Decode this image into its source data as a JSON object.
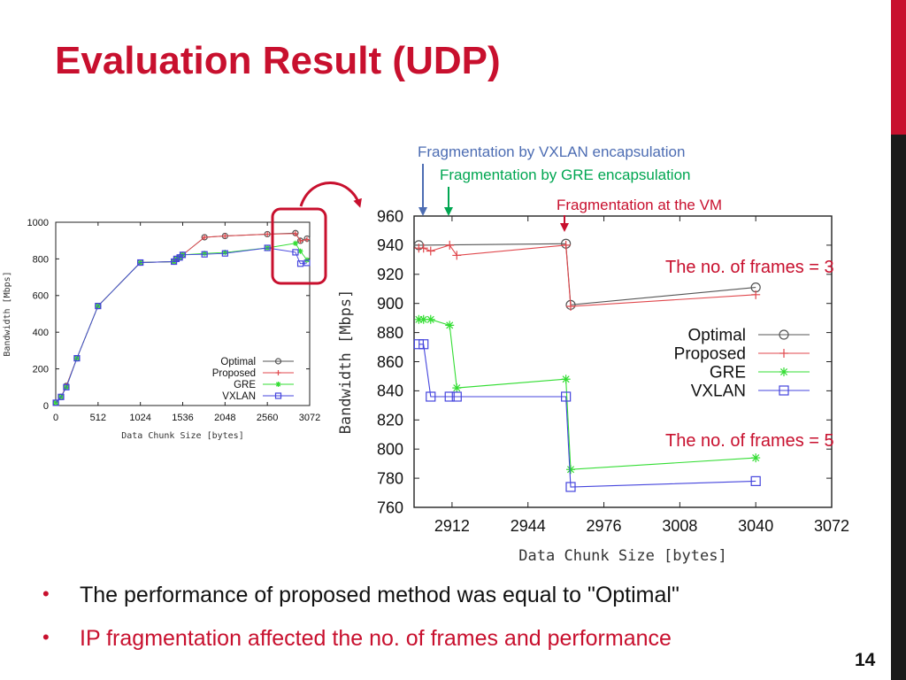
{
  "slide": {
    "title": "Evaluation Result (UDP)",
    "page_number": "14",
    "colors": {
      "accent": "#c8102e",
      "sidebar_dark": "#1a1a1a",
      "text": "#111111"
    }
  },
  "annotations": {
    "vxlan_frag": "Fragmentation by VXLAN encapsulation",
    "gre_frag": "Fragmentation by GRE encapsulation",
    "vm_frag": "Fragmentation at the VM",
    "frames3": "The no. of frames = 3",
    "frames5": "The no. of frames = 5",
    "colors": {
      "vxlan": "#4d6db3",
      "gre": "#00a651",
      "vm": "#c8102e"
    }
  },
  "bullets": [
    {
      "text": "The performance of proposed method was equal to \"Optimal\"",
      "color": "#111111"
    },
    {
      "text": "IP fragmentation affected the no. of frames and performance",
      "color": "#c8102e"
    }
  ],
  "chart_data": [
    {
      "type": "line",
      "xlabel": "Data Chunk Size [bytes]",
      "ylabel": "Bandwidth [Mbps]",
      "xlim": [
        0,
        3072
      ],
      "ylim": [
        0,
        1000
      ],
      "xticks": [
        0,
        512,
        1024,
        1536,
        2048,
        2560,
        3072
      ],
      "yticks": [
        0,
        200,
        400,
        600,
        800,
        1000
      ],
      "legend": "bottom-right",
      "series": [
        {
          "name": "Optimal",
          "marker": "circle",
          "color": "#555555",
          "x": [
            1,
            64,
            128,
            256,
            512,
            1024,
            1430,
            1460,
            1500,
            1536,
            1800,
            2048,
            2560,
            2900,
            2960,
            3040
          ],
          "y": [
            15,
            47,
            107,
            258,
            543,
            780,
            785,
            800,
            808,
            822,
            918,
            925,
            935,
            941,
            899,
            911
          ]
        },
        {
          "name": "Proposed",
          "marker": "plus",
          "color": "#e0474c",
          "x": [
            1,
            64,
            128,
            256,
            512,
            1024,
            1430,
            1460,
            1500,
            1536,
            1800,
            2048,
            2560,
            2900,
            2960,
            3040
          ],
          "y": [
            15,
            47,
            107,
            258,
            543,
            780,
            785,
            800,
            808,
            822,
            918,
            925,
            935,
            938,
            898,
            906
          ]
        },
        {
          "name": "GRE",
          "marker": "star",
          "color": "#33dd33",
          "x": [
            1,
            64,
            128,
            256,
            512,
            1024,
            1430,
            1460,
            1500,
            1536,
            1800,
            2048,
            2560,
            2900,
            2960,
            3040
          ],
          "y": [
            15,
            47,
            100,
            258,
            543,
            780,
            785,
            800,
            808,
            822,
            830,
            835,
            860,
            885,
            842,
            794
          ]
        },
        {
          "name": "VXLAN",
          "marker": "square",
          "color": "#4444dd",
          "x": [
            1,
            64,
            128,
            256,
            512,
            1024,
            1430,
            1460,
            1500,
            1536,
            1800,
            2048,
            2560,
            2900,
            2960,
            3040
          ],
          "y": [
            15,
            47,
            100,
            258,
            543,
            780,
            785,
            800,
            808,
            822,
            825,
            830,
            860,
            836,
            774,
            778
          ]
        }
      ]
    },
    {
      "type": "line",
      "xlabel": "Data Chunk Size [bytes]",
      "ylabel": "Bandwidth [Mbps]",
      "xlim": [
        2896,
        3072
      ],
      "ylim": [
        760,
        960
      ],
      "xticks": [
        2912,
        2944,
        2976,
        3008,
        3040,
        3072
      ],
      "yticks": [
        760,
        780,
        800,
        820,
        840,
        860,
        880,
        900,
        920,
        940,
        960
      ],
      "legend": "middle-right",
      "series": [
        {
          "name": "Optimal",
          "marker": "circle",
          "color": "#555555",
          "x": [
            2898,
            2960,
            2962,
            3040
          ],
          "y": [
            940,
            941,
            899,
            911
          ]
        },
        {
          "name": "Proposed",
          "marker": "plus",
          "color": "#e0474c",
          "x": [
            2898,
            2900,
            2903,
            2911,
            2914,
            2960,
            2962,
            3040
          ],
          "y": [
            938,
            938,
            936,
            940,
            933,
            940,
            898,
            906
          ]
        },
        {
          "name": "GRE",
          "marker": "star",
          "color": "#33dd33",
          "x": [
            2898,
            2900,
            2903,
            2911,
            2914,
            2960,
            2962,
            3040
          ],
          "y": [
            889,
            889,
            889,
            885,
            842,
            848,
            786,
            794
          ]
        },
        {
          "name": "VXLAN",
          "marker": "square",
          "color": "#4444dd",
          "x": [
            2898,
            2900,
            2903,
            2911,
            2914,
            2960,
            2962,
            3040
          ],
          "y": [
            872,
            872,
            836,
            836,
            836,
            836,
            774,
            778
          ]
        }
      ]
    }
  ]
}
